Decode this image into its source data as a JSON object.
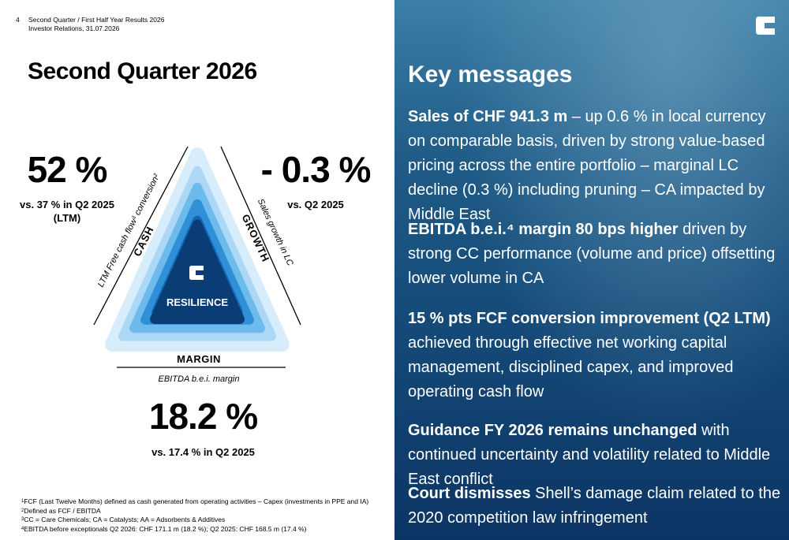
{
  "header": {
    "page_number": "4",
    "line1": "Second Quarter / First Half Year Results 2026",
    "line2": "Investor Relations, 31.07.2026"
  },
  "title": "Second Quarter 2026",
  "metrics": {
    "cash": {
      "value": "52 %",
      "note": "vs. 37 % in Q2 2025",
      "note2": "(LTM)"
    },
    "growth": {
      "value": "- 0.3 %",
      "note": "vs. Q2 2025"
    },
    "margin": {
      "value": "18.2 %",
      "note": "vs. 17.4 % in Q2 2025"
    }
  },
  "triangle": {
    "center": "RESILIENCE",
    "left_label": "CASH",
    "left_axis": "LTM Free cash flow¹ conversion²",
    "right_label": "GROWTH",
    "right_axis": "Sales growth in LC",
    "bottom_label": "MARGIN",
    "bottom_axis": "EBITDA b.e.i. margin"
  },
  "footnotes": [
    {
      "mark": "1",
      "text": "FCF (Last Twelve Months) defined as cash generated from operating activities – Capex (investments in PPE and IA)"
    },
    {
      "mark": "2",
      "text": "Defined as FCF / EBITDA"
    },
    {
      "mark": "3",
      "text": "CC = Care Chemicals; CA = Catalysts; AA = Adsorbents & Additives"
    },
    {
      "mark": "4",
      "text": "EBITDA before exceptionals Q2 2026: CHF 171.1 m (18.2 %); Q2 2025: CHF 168.5 m (17.4 %)"
    }
  ],
  "key_messages": {
    "title": "Key messages",
    "items": [
      {
        "bold": "Sales of CHF 941.3 m",
        "text": " – up 0.6 % in local currency on comparable basis, driven by strong value-based pricing across the entire portfolio – marginal LC decline (0.3 %) including pruning – CA impacted by Middle East"
      },
      {
        "bold": "EBITDA b.e.i.⁴ margin 80 bps higher",
        "text": " driven by strong CC performance (volume and price) offsetting lower volume in CA"
      },
      {
        "bold": "15 % pts FCF conversion improvement (Q2 LTM)",
        "text": " achieved through effective net working capital management, disciplined capex, and improved operating cash flow"
      },
      {
        "bold": "Guidance FY 2026 remains unchanged",
        "text": " with continued uncertainty and volatility related to Middle East conflict"
      },
      {
        "bold": "Court dismisses",
        "text": " Shell’s damage claim related to the 2020 competition law infringement"
      }
    ]
  }
}
